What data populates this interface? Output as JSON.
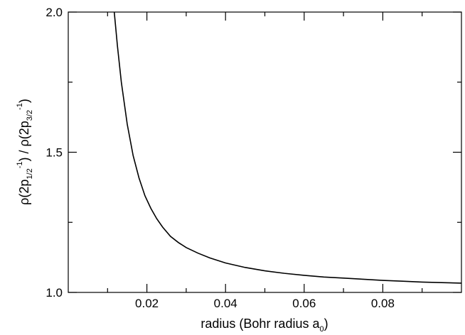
{
  "chart_data": {
    "type": "line",
    "xlabel": {
      "text": "radius (Bohr radius a",
      "sub": "0",
      "close": ")"
    },
    "ylabel": {
      "p1": "ρ(2p",
      "s1": "1/2",
      "u1": "-1",
      "p2": ") / ρ(2p",
      "s2": "3/2",
      "u2": "-1",
      "p3": ")"
    },
    "xlim": [
      0.0,
      0.1
    ],
    "ylim": [
      1.0,
      2.0
    ],
    "x_ticks_labeled": [
      0.02,
      0.04,
      0.06,
      0.08
    ],
    "x_tick_labels": [
      "0.02",
      "0.04",
      "0.06",
      "0.08"
    ],
    "x_ticks_minor": [
      0.01,
      0.03,
      0.05,
      0.07,
      0.09
    ],
    "y_ticks_labeled": [
      1.0,
      1.5,
      2.0
    ],
    "y_tick_labels": [
      "1.0",
      "1.5",
      "2.0"
    ],
    "y_ticks_minor": [
      1.25,
      1.75
    ],
    "grid": false,
    "line_color": "#000000",
    "series": [
      {
        "x": [
          0.0117,
          0.0125,
          0.0135,
          0.015,
          0.0165,
          0.018,
          0.0195,
          0.021,
          0.0225,
          0.024,
          0.026,
          0.028,
          0.03,
          0.033,
          0.036,
          0.04,
          0.045,
          0.05,
          0.055,
          0.06,
          0.065,
          0.07,
          0.075,
          0.08,
          0.085,
          0.09,
          0.095,
          0.1
        ],
        "y": [
          2.0,
          1.88,
          1.75,
          1.6,
          1.488,
          1.408,
          1.345,
          1.3,
          1.263,
          1.233,
          1.2,
          1.178,
          1.16,
          1.14,
          1.123,
          1.105,
          1.089,
          1.077,
          1.068,
          1.061,
          1.055,
          1.051,
          1.047,
          1.043,
          1.04,
          1.037,
          1.035,
          1.033
        ]
      }
    ]
  }
}
